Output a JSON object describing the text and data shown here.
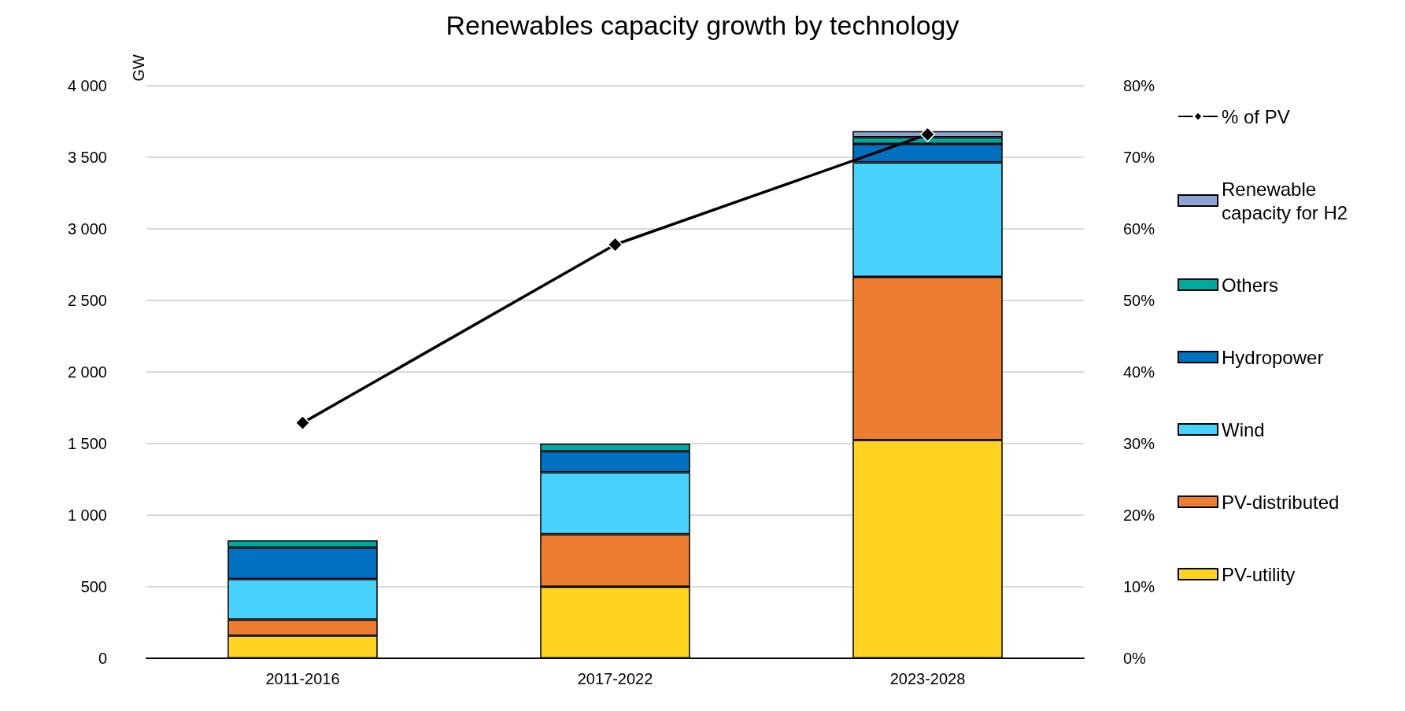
{
  "chart_data": {
    "type": "bar",
    "title": "Renewables capacity growth by technology",
    "ylabel": "GW",
    "stacked": true,
    "categories": [
      "2011-2016",
      "2017-2022",
      "2023-2028"
    ],
    "series": [
      {
        "name": "PV-utility",
        "color": "#ffd320",
        "values": [
          158,
          500,
          1525
        ]
      },
      {
        "name": "PV-distributed",
        "color": "#ed7d31",
        "values": [
          112,
          367,
          1140
        ]
      },
      {
        "name": "Wind",
        "color": "#48d2fd",
        "values": [
          284,
          432,
          799
        ]
      },
      {
        "name": "Hydropower",
        "color": "#0070c0",
        "values": [
          219,
          147,
          129
        ]
      },
      {
        "name": "Others",
        "color": "#00a99d",
        "values": [
          51,
          54,
          47
        ]
      },
      {
        "name": "Renewable capacity for H2",
        "color": "#8fa2d4",
        "values": [
          null,
          null,
          43
        ]
      },
      {
        "name": "% of PV",
        "type": "line",
        "axis": "y2",
        "color": "#000000",
        "marker": "diamond",
        "values": [
          32.9,
          57.8,
          73.2
        ]
      }
    ],
    "ylim": [
      0,
      4000
    ],
    "yticks": [
      {
        "value": 0,
        "label": "0"
      },
      {
        "value": 500,
        "label": "500"
      },
      {
        "value": 1000,
        "label": "1 000"
      },
      {
        "value": 1500,
        "label": "1 500"
      },
      {
        "value": 2000,
        "label": "2 000"
      },
      {
        "value": 2500,
        "label": "2 500"
      },
      {
        "value": 3000,
        "label": "3 000"
      },
      {
        "value": 3500,
        "label": "3 500"
      },
      {
        "value": 4000,
        "label": "4 000"
      }
    ],
    "y2lim": [
      0,
      80
    ],
    "y2ticks": [
      {
        "value": 0,
        "label": "0%"
      },
      {
        "value": 10,
        "label": "10%"
      },
      {
        "value": 20,
        "label": "20%"
      },
      {
        "value": 30,
        "label": "30%"
      },
      {
        "value": 40,
        "label": "40%"
      },
      {
        "value": 50,
        "label": "50%"
      },
      {
        "value": 60,
        "label": "60%"
      },
      {
        "value": 70,
        "label": "70%"
      },
      {
        "value": 80,
        "label": "80%"
      }
    ],
    "grid": "y",
    "legend": "right"
  }
}
